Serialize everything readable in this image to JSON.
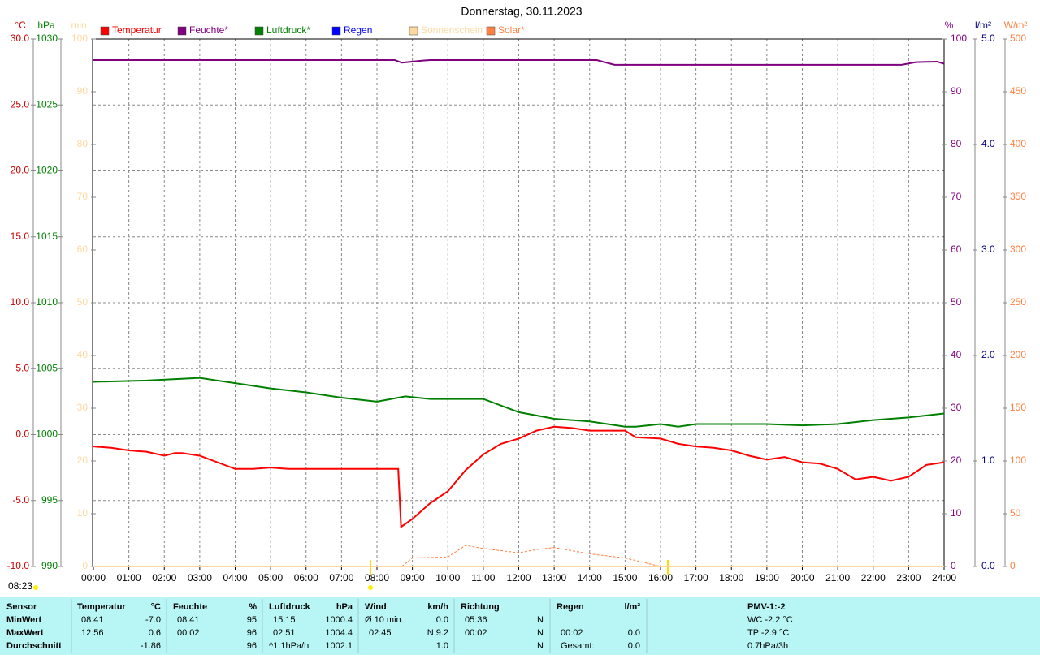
{
  "chart_data": {
    "type": "line",
    "title": "Donnerstag, 30.11.2023",
    "annotation": "08:23",
    "xlim": [
      0,
      24
    ],
    "xticks": [
      {
        "value": 0,
        "label": "00:00"
      },
      {
        "value": 1,
        "label": "01:00"
      },
      {
        "value": 2,
        "label": "02:00"
      },
      {
        "value": 3,
        "label": "03:00"
      },
      {
        "value": 4,
        "label": "04:00"
      },
      {
        "value": 5,
        "label": "05:00"
      },
      {
        "value": 6,
        "label": "06:00"
      },
      {
        "value": 7,
        "label": "07:00"
      },
      {
        "value": 8,
        "label": "08:00"
      },
      {
        "value": 9,
        "label": "09:00"
      },
      {
        "value": 10,
        "label": "10:00"
      },
      {
        "value": 11,
        "label": "11:00"
      },
      {
        "value": 12,
        "label": "12:00"
      },
      {
        "value": 13,
        "label": "13:00"
      },
      {
        "value": 14,
        "label": "14:00"
      },
      {
        "value": 15,
        "label": "15:00"
      },
      {
        "value": 16,
        "label": "16:00"
      },
      {
        "value": 17,
        "label": "17:00"
      },
      {
        "value": 18,
        "label": "18:00"
      },
      {
        "value": 19,
        "label": "19:00"
      },
      {
        "value": 20,
        "label": "20:00"
      },
      {
        "value": 21,
        "label": "21:00"
      },
      {
        "value": 22,
        "label": "22:00"
      },
      {
        "value": 23,
        "label": "23:00"
      },
      {
        "value": 24,
        "label": "24:00"
      }
    ],
    "grid": true,
    "ylabel": "°C",
    "ylim": [
      -10,
      30
    ],
    "yticks": [
      {
        "value": -10,
        "label": "-10.0"
      },
      {
        "value": -5,
        "label": "-5.0"
      },
      {
        "value": 0,
        "label": "0.0"
      },
      {
        "value": 5,
        "label": "5.0"
      },
      {
        "value": 10,
        "label": "10.0"
      },
      {
        "value": 15,
        "label": "15.0"
      },
      {
        "value": 20,
        "label": "20.0"
      },
      {
        "value": 25,
        "label": "25.0"
      },
      {
        "value": 30,
        "label": "30.0"
      }
    ],
    "y2label": "hPa",
    "y2lim": [
      990,
      1030
    ],
    "y2ticks": [
      990,
      995,
      1000,
      1005,
      1010,
      1015,
      1020,
      1025,
      1030
    ],
    "y3label": "min",
    "y3lim": [
      0,
      100
    ],
    "y3ticks": [
      0,
      10,
      20,
      30,
      40,
      50,
      60,
      70,
      80,
      90,
      100
    ],
    "y4label": "%",
    "y4lim": [
      0,
      100
    ],
    "y4ticks": [
      0,
      10,
      20,
      30,
      40,
      50,
      60,
      70,
      80,
      90,
      100
    ],
    "y5label": "l/m²",
    "y5lim": [
      0,
      5
    ],
    "y5ticks": [
      {
        "value": 0,
        "label": "0.0"
      },
      {
        "value": 1,
        "label": "1.0"
      },
      {
        "value": 2,
        "label": "2.0"
      },
      {
        "value": 3,
        "label": "3.0"
      },
      {
        "value": 4,
        "label": "4.0"
      },
      {
        "value": 5,
        "label": "5.0"
      }
    ],
    "y6label": "W/m²",
    "y6lim": [
      0,
      500
    ],
    "y6ticks": [
      0,
      50,
      100,
      150,
      200,
      250,
      300,
      350,
      400,
      450,
      500
    ],
    "series": [
      {
        "name": "Temperatur",
        "color": "#ff0000",
        "axis": "y",
        "x": [
          0,
          0.5,
          1,
          1.5,
          2,
          2.3,
          2.5,
          3,
          3.5,
          4,
          4.5,
          5,
          5.5,
          6,
          7,
          8,
          8.6,
          8.68,
          9,
          9.5,
          10,
          10.5,
          11,
          11.5,
          12,
          12.5,
          13,
          13.5,
          14,
          15,
          15.3,
          16,
          16.5,
          17,
          17.5,
          18,
          18.5,
          19,
          19.5,
          20,
          20.5,
          21,
          21.5,
          22,
          22.5,
          23,
          23.5,
          24
        ],
        "values": [
          -0.9,
          -1.0,
          -1.2,
          -1.3,
          -1.6,
          -1.4,
          -1.4,
          -1.6,
          -2.1,
          -2.6,
          -2.6,
          -2.5,
          -2.6,
          -2.6,
          -2.6,
          -2.6,
          -2.6,
          -7.0,
          -6.4,
          -5.2,
          -4.3,
          -2.7,
          -1.5,
          -0.7,
          -0.3,
          0.3,
          0.6,
          0.5,
          0.3,
          0.3,
          -0.2,
          -0.3,
          -0.7,
          -0.9,
          -1.0,
          -1.2,
          -1.6,
          -1.9,
          -1.7,
          -2.1,
          -2.2,
          -2.6,
          -3.4,
          -3.2,
          -3.5,
          -3.2,
          -2.3,
          -2.1
        ]
      },
      {
        "name": "Feuchte*",
        "color": "#800080",
        "axis": "y4",
        "x": [
          0,
          8.5,
          8.7,
          9.3,
          9.5,
          14.2,
          14.7,
          22.8,
          23.2,
          23.8,
          24
        ],
        "values": [
          96,
          96,
          95.5,
          95.9,
          96,
          96,
          95.1,
          95.1,
          95.6,
          95.7,
          95.3
        ]
      },
      {
        "name": "Luftdruck*",
        "color": "#008000",
        "axis": "y2",
        "x": [
          0,
          1.5,
          3,
          4,
          5,
          6,
          7,
          8,
          8.8,
          9.5,
          11,
          12,
          13,
          14,
          15,
          15.3,
          16,
          16.5,
          17,
          18,
          19,
          20,
          21,
          22,
          23,
          24
        ],
        "values": [
          1004.0,
          1004.1,
          1004.3,
          1003.9,
          1003.5,
          1003.2,
          1002.8,
          1002.5,
          1002.9,
          1002.7,
          1002.7,
          1001.7,
          1001.2,
          1001.0,
          1000.6,
          1000.6,
          1000.8,
          1000.6,
          1000.8,
          1000.8,
          1000.8,
          1000.7,
          1000.8,
          1001.1,
          1001.3,
          1001.6
        ]
      },
      {
        "name": "Regen",
        "color": "#0000ff",
        "axis": "y5",
        "x": [
          0,
          24
        ],
        "values": [
          0,
          0
        ]
      },
      {
        "name": "Sonnenschein",
        "color": "#ffd8a0",
        "axis": "y3",
        "x": [
          0,
          24
        ],
        "values": [
          0,
          0
        ]
      },
      {
        "name": "Solar*",
        "color": "#ff8040",
        "axis": "y6",
        "dashed": true,
        "x": [
          8.7,
          9,
          10,
          10.5,
          11,
          12,
          12.5,
          13,
          14,
          15,
          16
        ],
        "values": [
          0,
          8,
          9,
          20,
          17,
          13,
          16,
          18,
          12,
          8,
          0
        ]
      }
    ]
  },
  "stats_table": {
    "header": [
      "Sensor",
      "Temperatur",
      "°C",
      "Feuchte",
      "%",
      "Luftdruck",
      "hPa",
      "Wind",
      "km/h",
      "Richtung",
      null,
      "Regen",
      "l/m²",
      "PMV-1:-2"
    ],
    "rows": [
      [
        "MinWert",
        "08:41",
        "-7.0",
        "08:41",
        "95",
        "15:15",
        "1000.4",
        "Ø 10 min.",
        "0.0",
        "05:36",
        "N",
        null,
        null,
        "WC -2.2 °C"
      ],
      [
        "MaxWert",
        "12:56",
        "0.6",
        "00:02",
        "96",
        "02:51",
        "1004.4",
        "02:45",
        "N 9.2",
        "00:02",
        "N",
        "00:02",
        "0.0",
        "TP -2.9 °C"
      ],
      [
        "Durchschnitt",
        null,
        "-1.86",
        null,
        "96",
        "^1.1hPa/h",
        "1002.1",
        null,
        "1.0",
        null,
        "N",
        "Gesamt:",
        "0.0",
        "0.7hPa/3h"
      ]
    ]
  }
}
